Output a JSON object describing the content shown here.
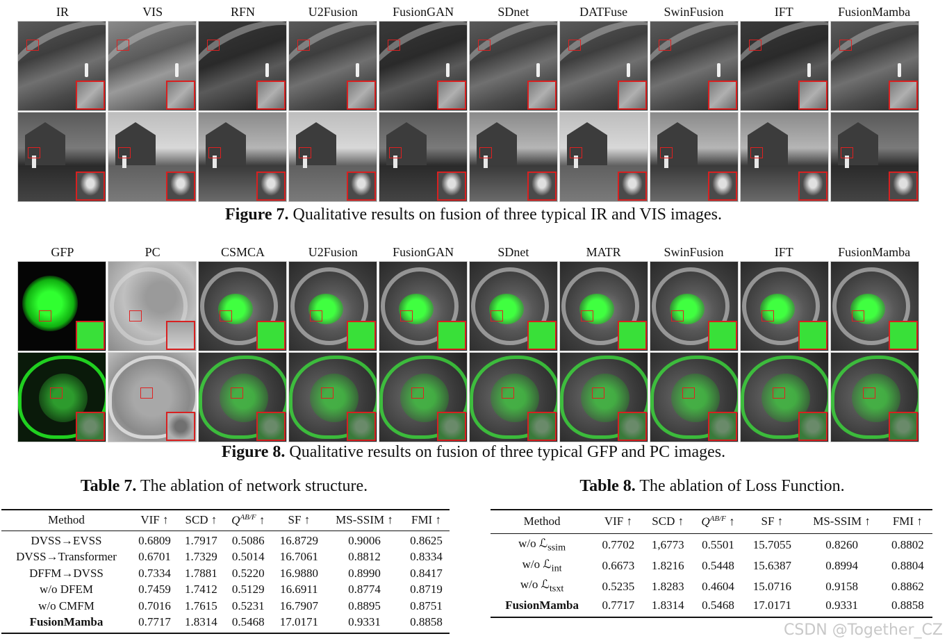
{
  "figure7": {
    "columns": [
      "IR",
      "VIS",
      "RFN",
      "U2Fusion",
      "FusionGAN",
      "SDnet",
      "DATFuse",
      "SwinFusion",
      "IFT",
      "FusionMamba"
    ],
    "caption_label": "Figure 7.",
    "caption_text": "Qualitative results on fusion of three typical IR and VIS images."
  },
  "figure8": {
    "columns": [
      "GFP",
      "PC",
      "CSMCA",
      "U2Fusion",
      "FusionGAN",
      "SDnet",
      "MATR",
      "SwinFusion",
      "IFT",
      "FusionMamba"
    ],
    "caption_label": "Figure 8.",
    "caption_text": "Qualitative results on fusion of three typical GFP and PC images."
  },
  "table7": {
    "title_label": "Table 7.",
    "title_text": "The ablation of network structure.",
    "headers": [
      "Method",
      "VIF ↑",
      "SCD ↑",
      "Q",
      "AB/F",
      " ↑",
      "SF ↑",
      "MS-SSIM ↑",
      "FMI ↑"
    ],
    "rows": [
      [
        "DVSS→EVSS",
        "0.6809",
        "1.7917",
        "0.5086",
        "16.8729",
        "0.9006",
        "0.8625"
      ],
      [
        "DVSS→Transformer",
        "0.6701",
        "1.7329",
        "0.5014",
        "16.7061",
        "0.8812",
        "0.8334"
      ],
      [
        "DFFM→DVSS",
        "0.7334",
        "1.7881",
        "0.5220",
        "16.9880",
        "0.8990",
        "0.8417"
      ],
      [
        "w/o DFEM",
        "0.7459",
        "1.7412",
        "0.5129",
        "16.6911",
        "0.8774",
        "0.8719"
      ],
      [
        "w/o CMFM",
        "0.7016",
        "1.7615",
        "0.5231",
        "16.7907",
        "0.8895",
        "0.8751"
      ],
      [
        "FusionMamba",
        "0.7717",
        "1.8314",
        "0.5468",
        "17.0171",
        "0.9331",
        "0.8858"
      ]
    ]
  },
  "table8": {
    "title_label": "Table 8.",
    "title_text": "The ablation of Loss Function.",
    "headers": [
      "Method",
      "VIF ↑",
      "SCD ↑",
      "Q",
      "AB/F",
      " ↑",
      "SF ↑",
      "MS-SSIM ↑",
      "FMI ↑"
    ],
    "rows": [
      [
        "w/o ℒ",
        "ssim",
        "0.7702",
        "1,6773",
        "0.5501",
        "15.7055",
        "0.8260",
        "0.8802"
      ],
      [
        "w/o ℒ",
        "int",
        "0.6673",
        "1.8216",
        "0.5448",
        "15.6387",
        "0.8994",
        "0.8804"
      ],
      [
        "w/o ℒ",
        "tsxt",
        "0.5235",
        "1.8283",
        "0.4604",
        "15.0716",
        "0.9158",
        "0.8862"
      ],
      [
        "FusionMamba",
        "",
        "0.7717",
        "1.8314",
        "0.5468",
        "17.0171",
        "0.9331",
        "0.8858"
      ]
    ]
  },
  "watermark": "CSDN @Together_CZ"
}
